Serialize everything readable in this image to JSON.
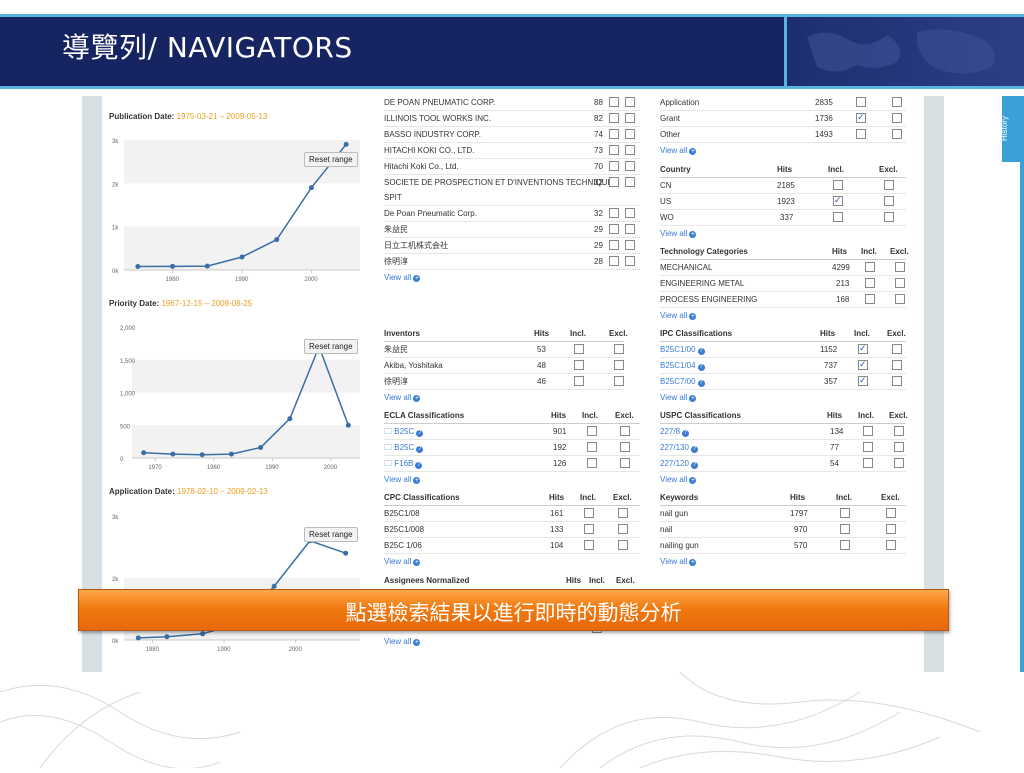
{
  "slide": {
    "title": "導覽列/ NAVIGATORS",
    "banner": "點選檢索結果以進行即時的動態分析",
    "history_tab": "History"
  },
  "charts": {
    "publication": {
      "label": "Publication Date:",
      "range": "1975-03-21 – 2009-05-13",
      "reset": "Reset range"
    },
    "priority": {
      "label": "Priority Date:",
      "range": "1967-12-15 – 2008-08-25",
      "reset": "Reset range"
    },
    "application": {
      "label": "Application Date:",
      "range": "1978-02-10 – 2009-02-13",
      "reset": "Reset range"
    }
  },
  "chart_data": [
    {
      "type": "line",
      "title": "Publication Date: 1975-03-21 – 2009-05-13",
      "x": [
        1975,
        1980,
        1985,
        1990,
        1995,
        2000,
        2005
      ],
      "y": [
        80,
        85,
        90,
        300,
        700,
        1900,
        2900
      ],
      "xticks": [
        "1980",
        "1990",
        "2000"
      ],
      "yticks": [
        "0k",
        "1k",
        "2k",
        "3k"
      ],
      "ylim": [
        0,
        3000
      ]
    },
    {
      "type": "line",
      "title": "Priority Date: 1967-12-15 – 2008-08-25",
      "x": [
        1968,
        1973,
        1978,
        1983,
        1988,
        1993,
        1998,
        2003
      ],
      "y": [
        80,
        60,
        50,
        60,
        160,
        600,
        1700,
        500
      ],
      "xticks": [
        "1970",
        "1980",
        "1990",
        "2000"
      ],
      "yticks": [
        "0",
        "500",
        "1,000",
        "1,500",
        "2,000"
      ],
      "ylim": [
        0,
        2000
      ]
    },
    {
      "type": "line",
      "title": "Application Date: 1978-02-10 – 2009-02-13",
      "x": [
        1978,
        1982,
        1987,
        1992,
        1997,
        2002,
        2007
      ],
      "y": [
        50,
        80,
        150,
        400,
        1300,
        2400,
        2100
      ],
      "xticks": [
        "1980",
        "1990",
        "2000"
      ],
      "yticks": [
        "0k",
        "2k",
        "3k"
      ],
      "ylim": [
        0,
        3000
      ]
    }
  ],
  "assignees": {
    "rows": [
      {
        "name": "DE POAN PNEUMATIC CORP.",
        "hits": "88"
      },
      {
        "name": "ILLINOIS TOOL WORKS INC.",
        "hits": "82"
      },
      {
        "name": "BASSO INDUSTRY CORP.",
        "hits": "74"
      },
      {
        "name": "HITACHI KOKI CO., LTD.",
        "hits": "73"
      },
      {
        "name": "Hitachi Koki Co., Ltd.",
        "hits": "70"
      },
      {
        "name": "SOCIETE DE PROSPECTION ET D'INVENTIONS TECHNIQUES",
        "hits": "32"
      },
      {
        "name": "SPIT",
        "hits": ""
      },
      {
        "name": "De Poan Pneumatic Corp.",
        "hits": "32"
      },
      {
        "name": "朱益民",
        "hits": "29"
      },
      {
        "name": "日立工机株式会社",
        "hits": "29"
      },
      {
        "name": "徐明淳",
        "hits": "28"
      }
    ],
    "view_all": "View all"
  },
  "doc_types": {
    "rows": [
      {
        "name": "Application",
        "hits": "2835",
        "incl": false
      },
      {
        "name": "Grant",
        "hits": "1736",
        "incl": true
      },
      {
        "name": "Other",
        "hits": "1493",
        "incl": false
      }
    ],
    "view_all": "View all"
  },
  "country": {
    "headers": {
      "name": "Country",
      "hits": "Hits",
      "incl": "Incl.",
      "excl": "Excl."
    },
    "rows": [
      {
        "name": "CN",
        "hits": "2185",
        "incl": false
      },
      {
        "name": "US",
        "hits": "1923",
        "incl": true
      },
      {
        "name": "WO",
        "hits": "337",
        "incl": false
      }
    ],
    "view_all": "View all"
  },
  "tech": {
    "headers": {
      "name": "Technology Categories",
      "hits": "Hits",
      "incl": "Incl.",
      "excl": "Excl."
    },
    "rows": [
      {
        "name": "MECHANICAL",
        "hits": "4299"
      },
      {
        "name": "ENGINEERING METAL",
        "hits": "213"
      },
      {
        "name": "PROCESS ENGINEERING",
        "hits": "168"
      }
    ],
    "view_all": "View all"
  },
  "inventors": {
    "headers": {
      "name": "Inventors",
      "hits": "Hits",
      "incl": "Incl.",
      "excl": "Excl."
    },
    "rows": [
      {
        "name": "朱益民",
        "hits": "53"
      },
      {
        "name": "Akiba, Yoshitaka",
        "hits": "48"
      },
      {
        "name": "徐明淳",
        "hits": "46"
      }
    ],
    "view_all": "View all"
  },
  "ipc": {
    "headers": {
      "name": "IPC Classifications",
      "hits": "Hits",
      "incl": "Incl.",
      "excl": "Excl."
    },
    "rows": [
      {
        "name": "B25C1/00",
        "hits": "1152",
        "incl": true
      },
      {
        "name": "B25C1/04",
        "hits": "737",
        "incl": true
      },
      {
        "name": "B25C7/00",
        "hits": "357",
        "incl": true
      }
    ],
    "view_all": "View all"
  },
  "ecla": {
    "headers": {
      "name": "ECLA Classifications",
      "hits": "Hits",
      "incl": "Incl.",
      "excl": "Excl."
    },
    "rows": [
      {
        "name": "B25C",
        "hits": "901"
      },
      {
        "name": "B25C",
        "hits": "192"
      },
      {
        "name": "F16B",
        "hits": "126"
      }
    ],
    "view_all": "View all"
  },
  "uspc": {
    "headers": {
      "name": "USPC Classifications",
      "hits": "Hits",
      "incl": "Incl.",
      "excl": "Excl."
    },
    "rows": [
      {
        "name": "227/8",
        "hits": "134"
      },
      {
        "name": "227/130",
        "hits": "77"
      },
      {
        "name": "227/120",
        "hits": "54"
      }
    ],
    "view_all": "View all"
  },
  "cpc": {
    "headers": {
      "name": "CPC Classifications",
      "hits": "Hits",
      "incl": "Incl.",
      "excl": "Excl."
    },
    "rows": [
      {
        "name": "B25C1/08",
        "hits": "161"
      },
      {
        "name": "B25C1/008",
        "hits": "133"
      },
      {
        "name": "B25C 1/06",
        "hits": "104"
      }
    ],
    "view_all": "View all"
  },
  "keywords": {
    "headers": {
      "name": "Keywords",
      "hits": "Hits",
      "incl": "Incl.",
      "excl": "Excl."
    },
    "rows": [
      {
        "name": "nail gun",
        "hits": "1797"
      },
      {
        "name": "nail",
        "hits": "970"
      },
      {
        "name": "nailing gun",
        "hits": "570"
      }
    ],
    "view_all": "View all"
  },
  "assignees_norm": {
    "headers": {
      "name": "Assignees Normalized",
      "hits": "Hits",
      "incl": "Incl.",
      "excl": "Excl."
    },
    "view_all": "View all"
  }
}
